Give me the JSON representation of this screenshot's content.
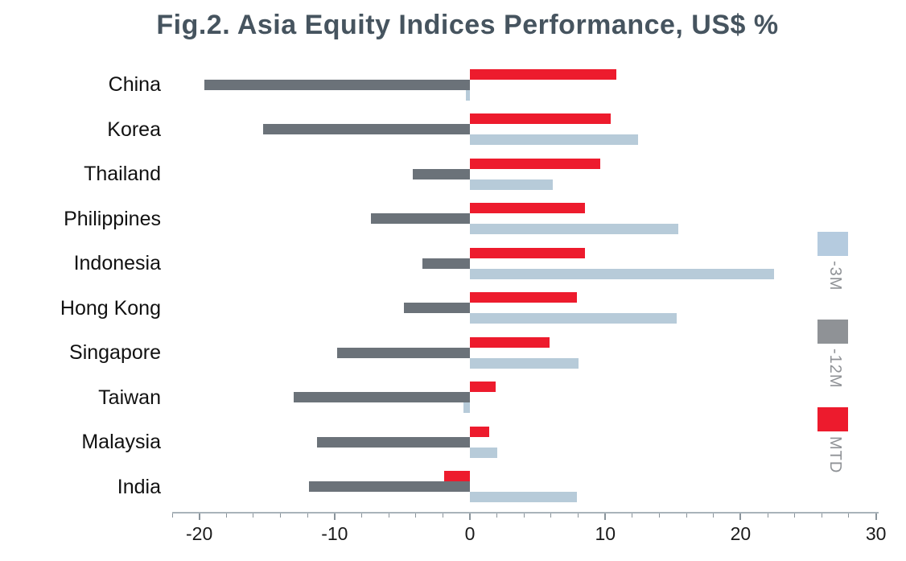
{
  "title": "Fig.2. Asia Equity Indices Performance, US$ %",
  "colors": {
    "title_text": "#46545f",
    "mtd_red": "#ed1b2d",
    "m12_gray": "#6b7279",
    "m3_blue": "#b7cbd9",
    "legend_gray_swatch": "#8f9296",
    "legend_blue_swatch": "#b5cbdf",
    "legend_text": "#8f9296",
    "axis_line": "#a9b3ba",
    "tick": "#8a949b",
    "label_text": "#111111"
  },
  "chart_data": {
    "type": "bar",
    "orientation": "horizontal",
    "title": "Fig.2. Asia Equity Indices Performance, US$ %",
    "categories": [
      "China",
      "Korea",
      "Thailand",
      "Philippines",
      "Indonesia",
      "Hong Kong",
      "Singapore",
      "Taiwan",
      "Malaysia",
      "India"
    ],
    "series": [
      {
        "name": "MTD",
        "color": "#ed1b2d",
        "values": [
          10.8,
          10.4,
          9.6,
          8.5,
          8.5,
          7.9,
          5.9,
          1.9,
          1.4,
          -1.9
        ]
      },
      {
        "name": "-12M",
        "color": "#6b7279",
        "values": [
          -19.6,
          -15.3,
          -4.2,
          -7.3,
          -3.5,
          -4.9,
          -9.8,
          -13.0,
          -11.3,
          -11.9
        ]
      },
      {
        "name": "-3M",
        "color": "#b7cbd9",
        "values": [
          -0.3,
          12.4,
          6.1,
          15.4,
          22.5,
          15.3,
          8.0,
          -0.5,
          2.0,
          7.9
        ]
      }
    ],
    "xlabel": "",
    "ylabel": "",
    "xlim": [
      -22,
      30.2
    ],
    "x_major_ticks": [
      -20,
      -10,
      0,
      10,
      20,
      30
    ],
    "x_major_tick_labels": [
      "-20",
      "-10",
      "0",
      "10",
      "20",
      "30"
    ],
    "x_minor_tick_step": 2,
    "grid": false,
    "legend_position": "right-vertical",
    "legend": [
      {
        "label": "-3M",
        "swatch_color": "#b5cbdf"
      },
      {
        "label": "-12M",
        "swatch_color": "#8f9296"
      },
      {
        "label": "MTD",
        "swatch_color": "#ed1b2d"
      }
    ]
  }
}
